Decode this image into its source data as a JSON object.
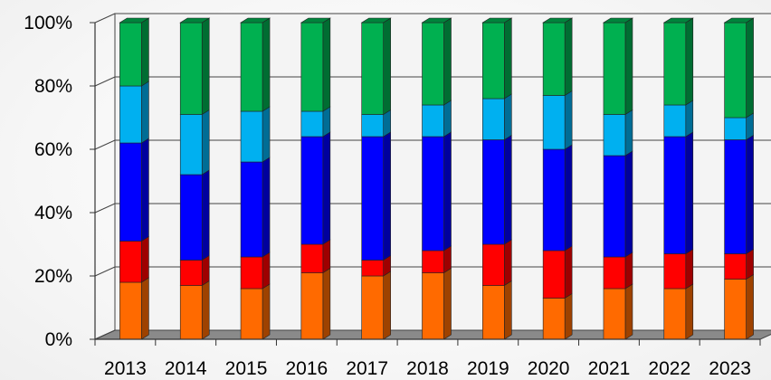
{
  "chart_data": {
    "type": "bar",
    "stacked": true,
    "percent": true,
    "three_d": true,
    "categories": [
      "2013",
      "2014",
      "2015",
      "2016",
      "2017",
      "2018",
      "2019",
      "2020",
      "2021",
      "2022",
      "2023"
    ],
    "series": [
      {
        "color": "#ff6a00",
        "values": [
          18,
          17,
          16,
          21,
          20,
          21,
          17,
          13,
          16,
          16,
          19
        ]
      },
      {
        "color": "#ff0000",
        "values": [
          13,
          8,
          10,
          9,
          5,
          7,
          13,
          15,
          10,
          11,
          8
        ]
      },
      {
        "color": "#0000ff",
        "values": [
          31,
          27,
          30,
          34,
          39,
          36,
          33,
          32,
          32,
          37,
          36
        ]
      },
      {
        "color": "#00b0f0",
        "values": [
          18,
          19,
          16,
          8,
          7,
          10,
          13,
          17,
          13,
          10,
          7
        ]
      },
      {
        "color": "#00b050",
        "values": [
          20,
          29,
          28,
          28,
          29,
          26,
          24,
          23,
          29,
          26,
          30
        ]
      }
    ],
    "y_ticks": [
      "0%",
      "20%",
      "40%",
      "60%",
      "80%",
      "100%"
    ],
    "ylim": [
      0,
      100
    ],
    "grid": true,
    "legend": "none"
  }
}
